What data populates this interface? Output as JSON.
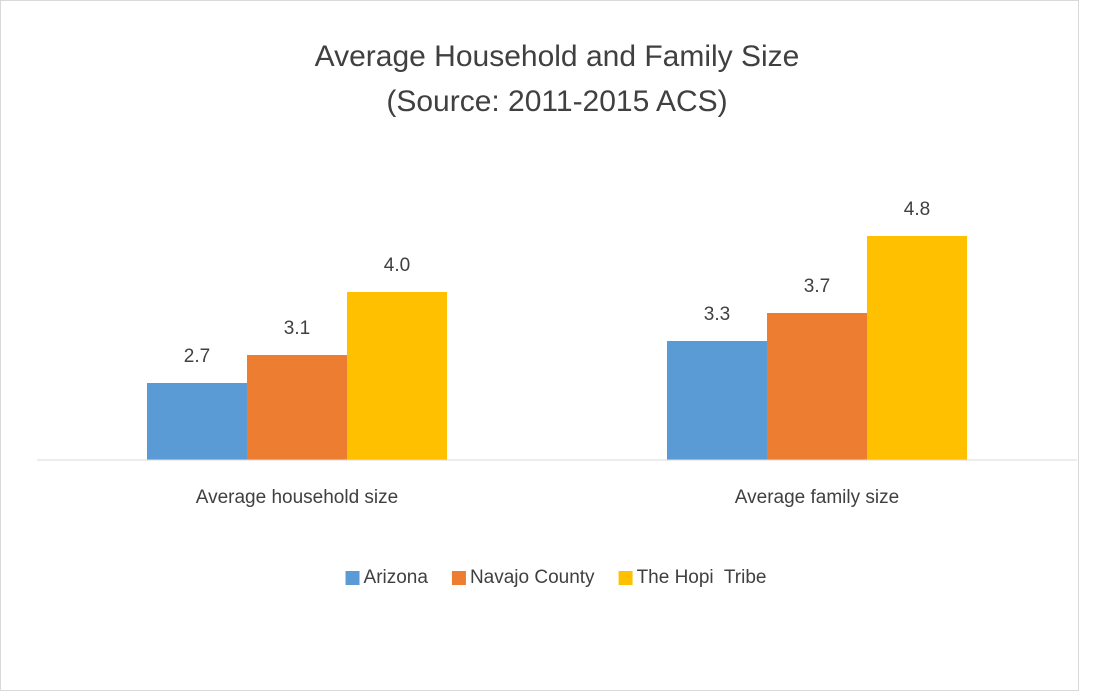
{
  "chart_data": {
    "type": "bar",
    "title": "Average Household and Family Size",
    "subtitle": "(Source: 2011-2015 ACS)",
    "categories": [
      "Average household size",
      "Average family size"
    ],
    "series": [
      {
        "name": "Arizona",
        "color": "#5b9bd5",
        "values": [
          2.7,
          3.3
        ]
      },
      {
        "name": "Navajo County",
        "color": "#ed7d31",
        "values": [
          3.1,
          3.7
        ]
      },
      {
        "name": "The Hopi  Tribe",
        "color": "#ffc000",
        "values": [
          4,
          4.8
        ],
        "value_labels": [
          "4.0",
          "4.8"
        ]
      }
    ],
    "ylim": [
      1.6,
      5.6
    ],
    "legend": "bottom"
  }
}
